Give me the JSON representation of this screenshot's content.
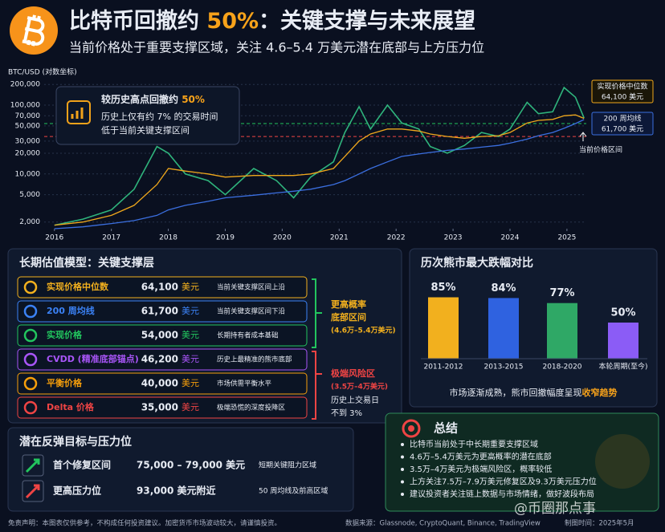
{
  "header": {
    "title_prefix": "比特币回撤约 ",
    "title_highlight": "50%",
    "title_suffix": "：关键支撑与未来展望",
    "subtitle": "当前价格处于重要支撑区域，关注 4.6–5.4 万美元潜在底部与上方压力位"
  },
  "chart_data": [
    {
      "type": "line",
      "ylabel": "BTC/USD (对数坐标)",
      "log_scale": true,
      "grid": true,
      "xlim": [
        2015.82,
        2025.34
      ],
      "xticks": [
        2016,
        2017,
        2018,
        2019,
        2020,
        2021,
        2022,
        2023,
        2024,
        2025
      ],
      "ylim": [
        1600,
        230000
      ],
      "yticks": [
        {
          "value": 2000,
          "label": "2,000"
        },
        {
          "value": 5000,
          "label": "5,000"
        },
        {
          "value": 10000,
          "label": "10,000"
        },
        {
          "value": 20000,
          "label": "20,000"
        },
        {
          "value": 30000,
          "label": "30,000"
        },
        {
          "value": 50000,
          "label": "50,000"
        },
        {
          "value": 70000,
          "label": "70,000"
        },
        {
          "value": 100000,
          "label": "100,000"
        },
        {
          "value": 200000,
          "label": "200,000"
        }
      ],
      "x": [
        2016.0,
        2016.5,
        2017.0,
        2017.4,
        2017.8,
        2018.0,
        2018.3,
        2018.7,
        2019.0,
        2019.5,
        2019.9,
        2020.2,
        2020.5,
        2020.9,
        2021.1,
        2021.35,
        2021.55,
        2021.85,
        2022.1,
        2022.4,
        2022.6,
        2022.9,
        2023.2,
        2023.5,
        2023.8,
        2024.0,
        2024.3,
        2024.5,
        2024.75,
        2024.95,
        2025.15,
        2025.3
      ],
      "series": [
        {
          "color": "#2fb47c",
          "values": [
            1800,
            2200,
            3000,
            6000,
            25000,
            20000,
            10000,
            8000,
            5000,
            12000,
            8000,
            4500,
            9000,
            15000,
            40000,
            95000,
            45000,
            100000,
            55000,
            45000,
            25000,
            20000,
            26000,
            40000,
            35000,
            45000,
            110000,
            75000,
            80000,
            180000,
            130000,
            65000
          ]
        },
        {
          "color": "#f0a81c",
          "values": [
            1800,
            2000,
            2500,
            3500,
            7000,
            12000,
            11000,
            10000,
            9000,
            9500,
            9500,
            9500,
            10000,
            12000,
            18000,
            30000,
            38000,
            45000,
            45000,
            42000,
            38000,
            35000,
            33000,
            35000,
            36000,
            40000,
            55000,
            60000,
            62000,
            70000,
            72000,
            64100
          ]
        },
        {
          "color": "#3b6fe0",
          "values": [
            1600,
            1700,
            1900,
            2100,
            2500,
            3000,
            3500,
            4000,
            4500,
            4900,
            5300,
            5600,
            6000,
            7000,
            8000,
            10000,
            12000,
            15000,
            18000,
            19500,
            20500,
            22000,
            23000,
            24500,
            26000,
            28000,
            32000,
            36000,
            40000,
            46000,
            54000,
            61700
          ]
        }
      ],
      "hlines": [
        {
          "value": 54000,
          "color": "#22c55e"
        },
        {
          "value": 35000,
          "color": "#ef4444"
        }
      ],
      "median_label": "实现价格中位数",
      "median_value": "64,100 美元",
      "ma_label": "200 周均线",
      "ma_value": "61,700 美元",
      "current_label": "当前价格区间",
      "callout": {
        "title": "较历史高点回撤约 ",
        "highlight": "50%",
        "line1": "历史上仅有约 7% 的交易时间",
        "line2": "低于当前关键支撑区间"
      }
    },
    {
      "type": "bar",
      "title": "历次熊市最大跌幅对比",
      "categories": [
        "2011-2012",
        "2013-2015",
        "2018-2020",
        "本轮周期(至今)"
      ],
      "values": [
        85,
        84,
        77,
        50
      ],
      "value_labels": [
        "85%",
        "84%",
        "77%",
        "50%"
      ],
      "colors": [
        "#f2b01e",
        "#2f62e0",
        "#2fa866",
        "#8b5cf6"
      ],
      "ylim": [
        0,
        100
      ],
      "note": "市场逐渐成熟，熊市回撤幅度呈现",
      "note_highlight": "收窄趋势"
    }
  ],
  "valuation": {
    "title": "长期估值模型：关键支撑层",
    "rows": [
      {
        "name": "实现价格中位数",
        "price": "64,100",
        "unit": "美元",
        "note": "当前关键支撑区间上沿",
        "color": "#f2b01e"
      },
      {
        "name": "200 周均线",
        "price": "61,700",
        "unit": "美元",
        "note": "当前关键支撑区间下沿",
        "color": "#3b82f6"
      },
      {
        "name": "实现价格",
        "price": "54,000",
        "unit": "美元",
        "note": "长期持有者成本基础",
        "color": "#22c55e"
      },
      {
        "name": "CVDD (精准底部锚点)",
        "price": "46,200",
        "unit": "美元",
        "note": "历史上最精准的熊市底部",
        "color": "#a855f7"
      },
      {
        "name": "平衡价格",
        "price": "40,000",
        "unit": "美元",
        "note": "市场供需平衡水平",
        "color": "#f59e0b"
      },
      {
        "name": "Delta 价格",
        "price": "35,000",
        "unit": "美元",
        "note": "极端恐慌的深度投降区",
        "color": "#ef4444"
      }
    ],
    "group_high": [
      "更高概率",
      "底部区间",
      "(4.6万–5.4万美元)"
    ],
    "group_risk": [
      "极端风险区",
      "(3.5万–4万美元)"
    ],
    "group_risk_note": [
      "历史上交易日",
      "不到 3%"
    ]
  },
  "targets": {
    "title": "潜在反弹目标与压力位",
    "rows": [
      {
        "name": "首个修复区间",
        "value": "75,000 – 79,000 美元",
        "note": "短期关键阻力区域",
        "color": "#22c55e"
      },
      {
        "name": "更高压力位",
        "value": "93,000 美元附近",
        "note": "50 周均线及前高区域",
        "color": "#ef4444"
      }
    ]
  },
  "summary": {
    "title": "总结",
    "items": [
      "比特币当前处于中长期重要支撑区域",
      "4.6万–5.4万美元为更高概率的潜在底部",
      "3.5万–4万美元为极端风险区，概率较低",
      "上方关注7.5万–7.9万美元修复区及9.3万美元压力位",
      "建议投资者关注链上数据与市场情绪，做好波段布局"
    ]
  },
  "footer": {
    "disclaimer": "免责声明：本图表仅供参考，不构成任何投资建议。加密货币市场波动较大，请谨慎投资。",
    "source": "数据来源：Glassnode, CryptoQuant, Binance, TradingView",
    "date": "制图时间：2025年5月",
    "watermark": "@币圈那点事"
  }
}
